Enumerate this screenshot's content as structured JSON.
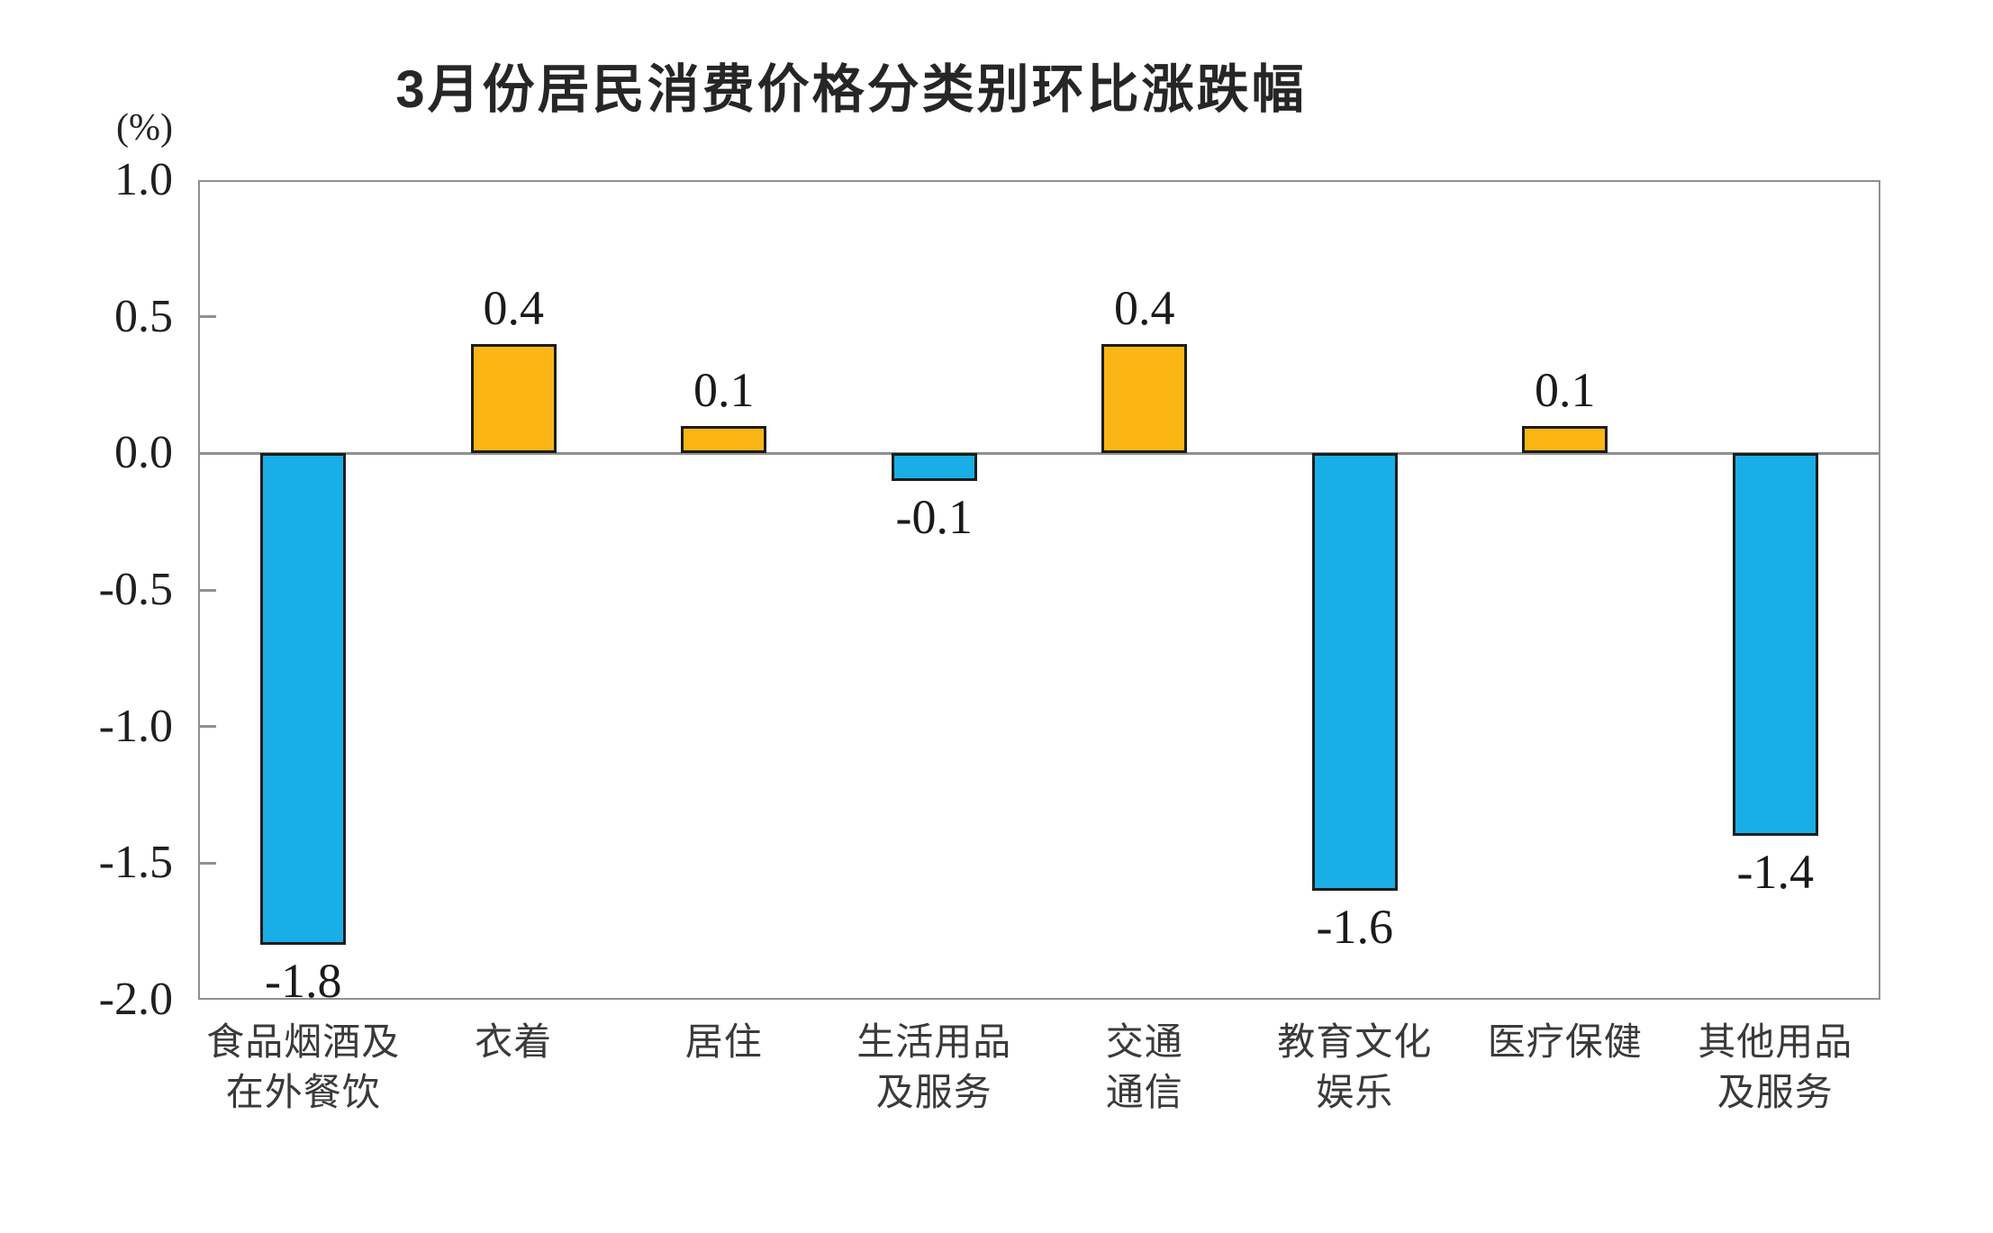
{
  "title": "3月份居民消费价格分类别环比涨跌幅",
  "colors": {
    "positive_bar": "#fbb616",
    "negative_bar": "#1aaee6",
    "bar_border": "#1c1c1c",
    "axis_gray": "#909090",
    "text": "#1f1f1f"
  },
  "chart_data": {
    "type": "bar",
    "title": "3月份居民消费价格分类别环比涨跌幅",
    "ylabel": "(%)",
    "xlabel": "",
    "ylim": [
      -2.0,
      1.0
    ],
    "ytick_interval": 0.5,
    "ytick_labels": [
      "1.0",
      "0.5",
      "0.0",
      "-0.5",
      "-1.0",
      "-1.5",
      "-2.0"
    ],
    "grid": false,
    "legend": "none",
    "categories": [
      [
        "食品烟酒及",
        "在外餐饮"
      ],
      [
        "衣着"
      ],
      [
        "居住"
      ],
      [
        "生活用品",
        "及服务"
      ],
      [
        "交通",
        "通信"
      ],
      [
        "教育文化",
        "娱乐"
      ],
      [
        "医疗保健"
      ],
      [
        "其他用品",
        "及服务"
      ]
    ],
    "values": [
      -1.8,
      0.4,
      0.1,
      -0.1,
      0.4,
      -1.6,
      0.1,
      -1.4
    ],
    "value_labels": [
      "-1.8",
      "0.4",
      "0.1",
      "-0.1",
      "0.4",
      "-1.6",
      "0.1",
      "-1.4"
    ]
  }
}
